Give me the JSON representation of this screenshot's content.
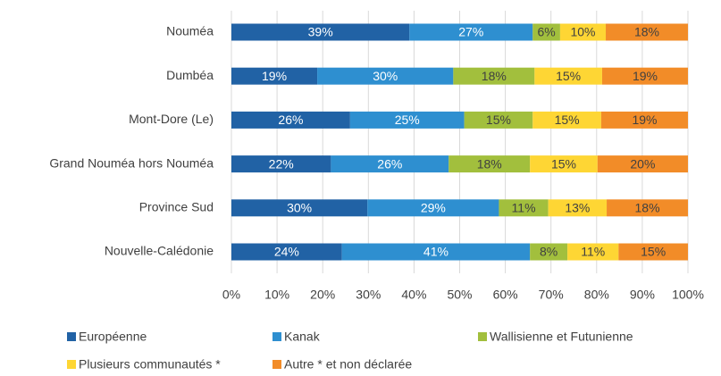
{
  "chart_data": {
    "type": "stacked_bar_horizontal",
    "categories": [
      "Nouméa",
      "Dumbéa",
      "Mont-Dore (Le)",
      "Grand Nouméa hors Nouméa",
      "Province Sud",
      "Nouvelle-Calédonie"
    ],
    "series": [
      {
        "name": "Européenne",
        "color": "#2162a5",
        "values": [
          39,
          18.8,
          26,
          21.8,
          29.8,
          24.2
        ],
        "value_labels": [
          "39%",
          "19%",
          "26%",
          "22%",
          "30%",
          "24%"
        ]
      },
      {
        "name": "Kanak",
        "color": "#2e8fd0",
        "values": [
          27,
          29.8,
          25,
          25.8,
          28.8,
          41.2
        ],
        "value_labels": [
          "27%",
          "30%",
          "25%",
          "26%",
          "29%",
          "41%"
        ]
      },
      {
        "name": "Wallisienne et Futunienne",
        "color": "#a2bf3d",
        "values": [
          6,
          17.8,
          15,
          17.8,
          10.8,
          8.2
        ],
        "value_labels": [
          "6%",
          "18%",
          "15%",
          "18%",
          "11%",
          "8%"
        ]
      },
      {
        "name": "Plusieurs communautés *",
        "color": "#fed634",
        "values": [
          10,
          14.8,
          15,
          14.8,
          12.8,
          11.2
        ],
        "value_labels": [
          "10%",
          "15%",
          "15%",
          "15%",
          "13%",
          "11%"
        ]
      },
      {
        "name": "Autre * et non déclarée",
        "color": "#f28c28",
        "values": [
          18,
          18.8,
          19,
          19.8,
          17.8,
          15.2
        ],
        "value_labels": [
          "18%",
          "19%",
          "19%",
          "20%",
          "18%",
          "15%"
        ]
      }
    ],
    "xlim": [
      0,
      100
    ],
    "xticks": [
      {
        "value": 0,
        "label": "0%"
      },
      {
        "value": 10,
        "label": "10%"
      },
      {
        "value": 20,
        "label": "20%"
      },
      {
        "value": 30,
        "label": "30%"
      },
      {
        "value": 40,
        "label": "40%"
      },
      {
        "value": 50,
        "label": "50%"
      },
      {
        "value": 60,
        "label": "60%"
      },
      {
        "value": 70,
        "label": "70%"
      },
      {
        "value": 80,
        "label": "80%"
      },
      {
        "value": 90,
        "label": "90%"
      },
      {
        "value": 100,
        "label": "100%"
      }
    ],
    "grid": true,
    "legend": "bottom"
  }
}
